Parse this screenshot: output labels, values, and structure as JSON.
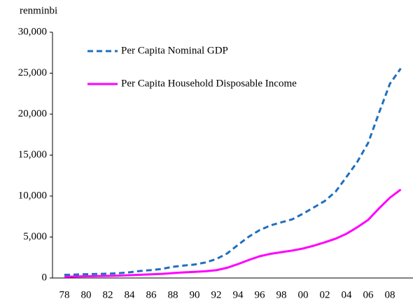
{
  "chart_data": {
    "type": "line",
    "y_axis_label": "renminbi",
    "categories": [
      "78",
      null,
      "80",
      null,
      "82",
      null,
      "84",
      null,
      "86",
      null,
      "88",
      null,
      "90",
      null,
      "92",
      null,
      "94",
      null,
      "96",
      null,
      "98",
      null,
      "00",
      null,
      "02",
      null,
      "04",
      null,
      "06",
      null,
      "08",
      null
    ],
    "series": [
      {
        "name": "Per Capita Nominal GDP",
        "color": "#1f6fbf",
        "style": "dashed",
        "values": [
          381,
          419,
          463,
          492,
          528,
          583,
          695,
          858,
          963,
          1112,
          1366,
          1519,
          1644,
          1893,
          2311,
          2998,
          4044,
          5046,
          5846,
          6420,
          6796,
          7159,
          7858,
          8622,
          9398,
          10542,
          12336,
          14185,
          16500,
          20169,
          23708,
          25575
        ]
      },
      {
        "name": "Per Capita Household Disposable Income",
        "color": "#ff00ff",
        "style": "solid",
        "values": [
          150,
          180,
          210,
          230,
          260,
          290,
          340,
          400,
          450,
          500,
          600,
          680,
          750,
          820,
          950,
          1250,
          1700,
          2200,
          2650,
          2950,
          3150,
          3350,
          3600,
          3950,
          4350,
          4800,
          5400,
          6200,
          7100,
          8500,
          9800,
          10800
        ]
      }
    ],
    "ylim": [
      0,
      30000
    ],
    "yticks": [
      0,
      {
        "value": 5000,
        "label": "5,000"
      },
      {
        "value": 10000,
        "label": "10,000"
      },
      {
        "value": 15000,
        "label": "15,000"
      },
      {
        "value": 20000,
        "label": "20,000"
      },
      {
        "value": 25000,
        "label": "25,000"
      },
      {
        "value": 30000,
        "label": "30,000"
      }
    ],
    "grid": false
  }
}
